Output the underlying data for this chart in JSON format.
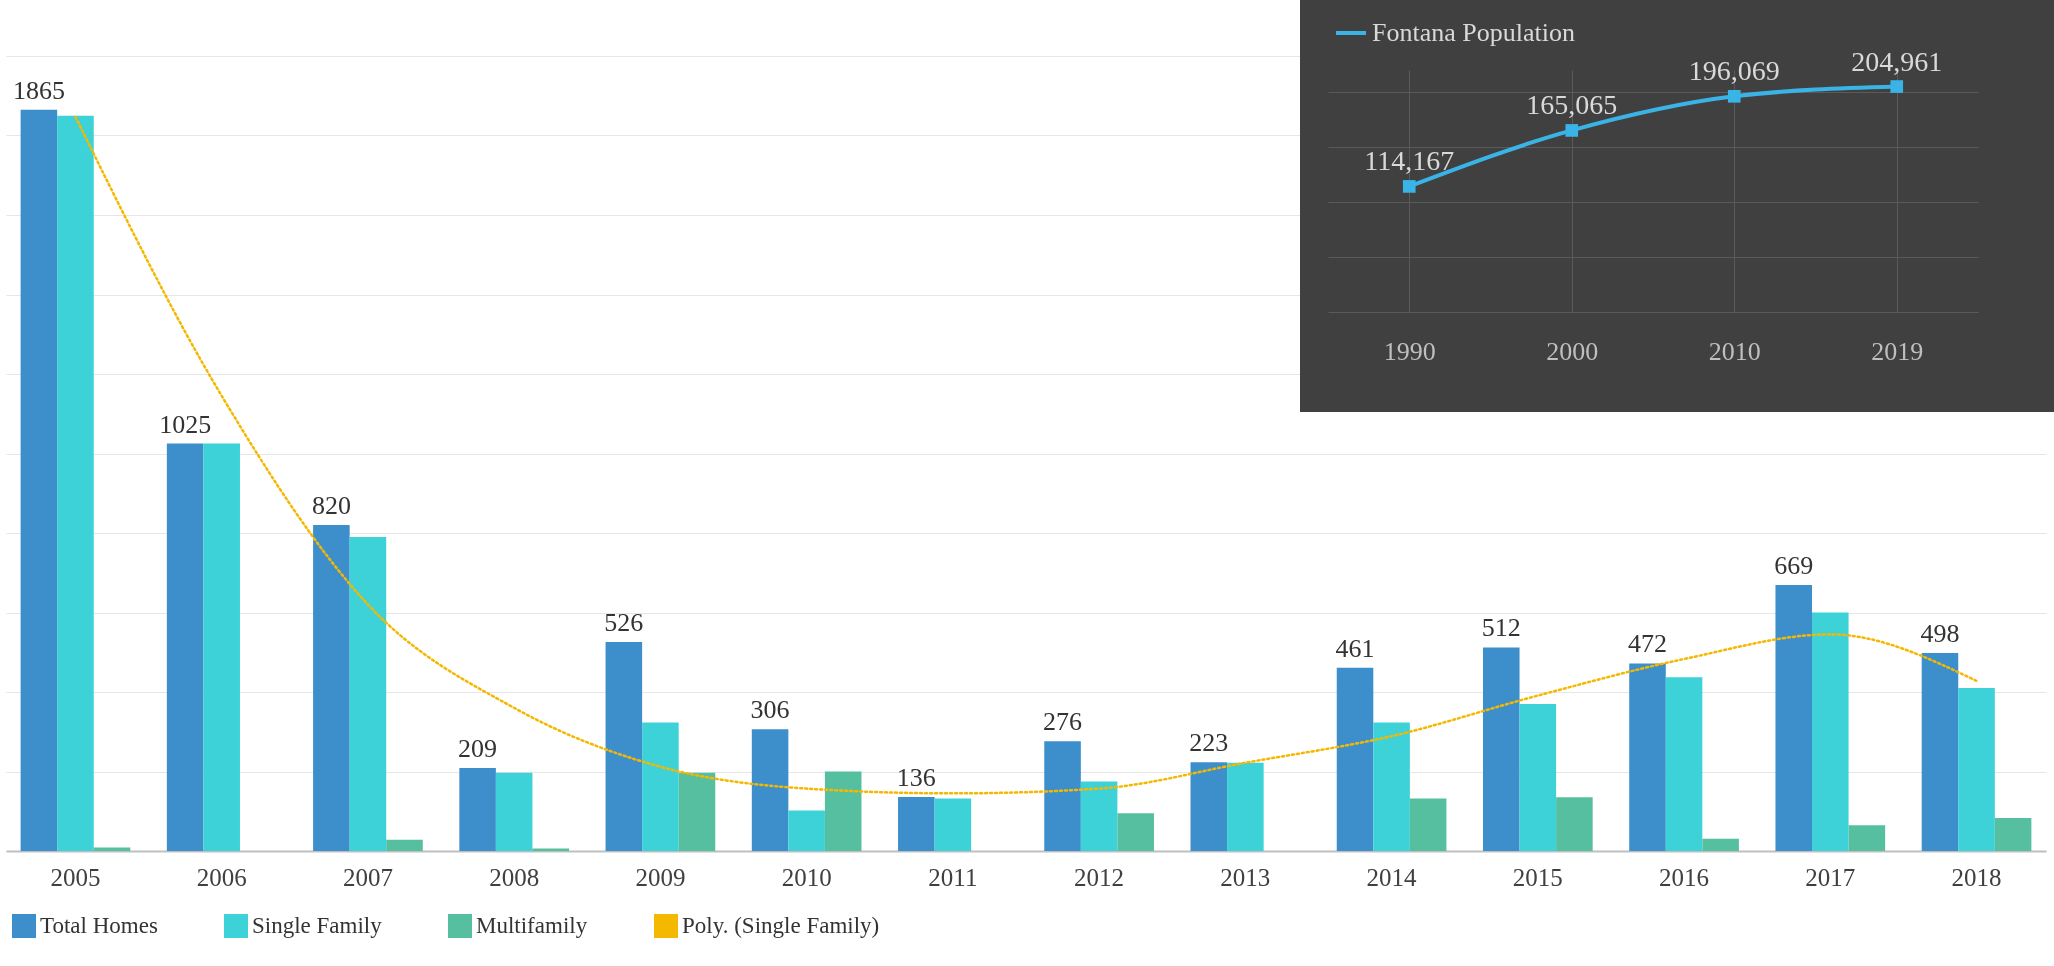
{
  "chart_data": [
    {
      "type": "bar",
      "categories": [
        "2005",
        "2006",
        "2007",
        "2008",
        "2009",
        "2010",
        "2011",
        "2012",
        "2013",
        "2014",
        "2015",
        "2016",
        "2017",
        "2018"
      ],
      "series": [
        {
          "name": "Total Homes",
          "color": "#3d8fcc",
          "values": [
            1865,
            1025,
            820,
            209,
            526,
            306,
            136,
            276,
            223,
            461,
            512,
            472,
            669,
            498
          ],
          "value_labels": [
            "1865",
            "1025",
            "820",
            "209",
            "526",
            "306",
            "136",
            "276",
            "223",
            "461",
            "512",
            "472",
            "669",
            "498"
          ]
        },
        {
          "name": "Single Family",
          "color": "#3dd2d8",
          "values": [
            1850,
            1025,
            790,
            197,
            323,
            102,
            132,
            175,
            222,
            323,
            370,
            437,
            600,
            410
          ]
        },
        {
          "name": "Multifamily",
          "color": "#55bfa0",
          "values": [
            9,
            null,
            28,
            6,
            197,
            200,
            null,
            95,
            null,
            132,
            135,
            31,
            65,
            83
          ]
        },
        {
          "name": "Poly. (Single Family)",
          "type": "line",
          "line_style": "dotted",
          "color": "#f5b800",
          "values": [
            1847,
            1145,
            620,
            360,
            212,
            157,
            145,
            157,
            222,
            289,
            391,
            483,
            545,
            428
          ]
        }
      ],
      "grid": "y",
      "legend": "bottom",
      "tick_labels": "x"
    },
    {
      "type": "line",
      "categories": [
        "1990",
        "2000",
        "2010",
        "2019"
      ],
      "series": [
        {
          "name": "Fontana Population",
          "color": "#3ab4e6",
          "values": [
            114167,
            165065,
            196069,
            204961
          ],
          "value_labels": [
            "114,167",
            "165,065",
            "196,069",
            "204,961"
          ]
        }
      ],
      "grid": true,
      "legend": "top",
      "tick_labels": "x",
      "marker": "square"
    }
  ]
}
